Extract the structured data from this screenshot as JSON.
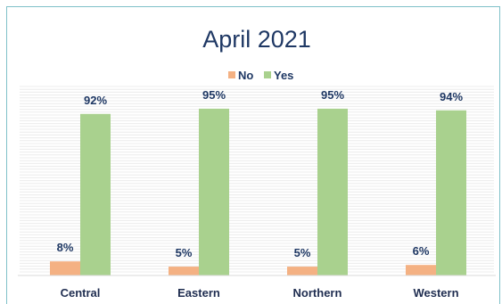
{
  "chart_data": {
    "type": "bar",
    "title": "April 2021",
    "categories": [
      "Central",
      "Eastern",
      "Northern",
      "Western"
    ],
    "series": [
      {
        "name": "No",
        "values": [
          8,
          5,
          5,
          6
        ],
        "labels": [
          "8%",
          "5%",
          "5%",
          "6%"
        ],
        "color": "#f4b183"
      },
      {
        "name": "Yes",
        "values": [
          92,
          95,
          95,
          94
        ],
        "labels": [
          "92%",
          "95%",
          "95%",
          "94%"
        ],
        "color": "#a9d18e"
      }
    ],
    "ylim": [
      0,
      100
    ],
    "legend": "top-center",
    "grid": true
  }
}
